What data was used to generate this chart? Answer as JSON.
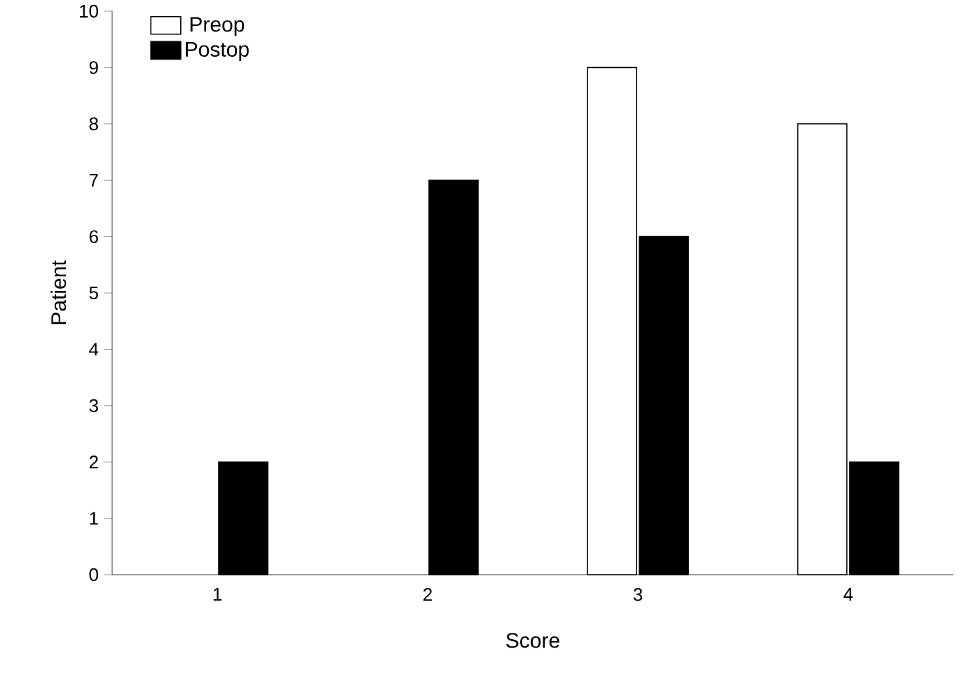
{
  "chart_data": {
    "type": "bar",
    "xlabel": "Score",
    "ylabel": "Patient",
    "categories": [
      "1",
      "2",
      "3",
      "4"
    ],
    "series": [
      {
        "name": "Preop",
        "color": "#ffffff",
        "values": [
          null,
          null,
          9,
          8
        ]
      },
      {
        "name": "Postop",
        "color": "#000000",
        "values": [
          2,
          7,
          6,
          2
        ]
      }
    ],
    "ylim": [
      0,
      10
    ],
    "yticks": [
      0,
      1,
      2,
      3,
      4,
      5,
      6,
      7,
      8,
      9,
      10
    ],
    "grid": false,
    "legend": "top left"
  }
}
